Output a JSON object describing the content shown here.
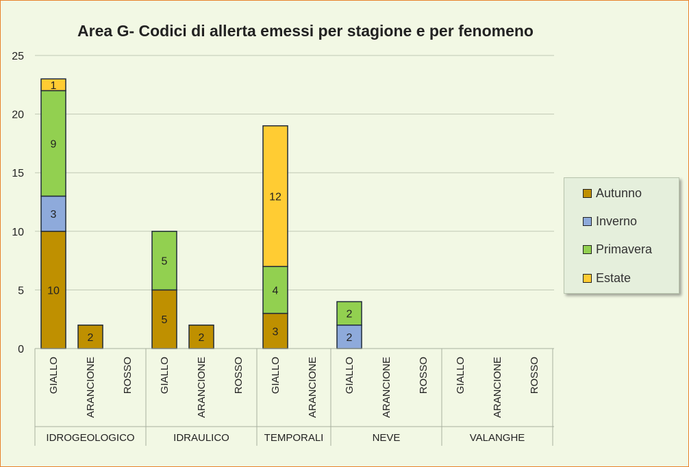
{
  "chart_data": {
    "type": "bar",
    "stacked": true,
    "title": "Area G- Codici di allerta emessi per stagione e per fenomeno",
    "ylim": [
      0,
      25
    ],
    "yticks": [
      0,
      5,
      10,
      15,
      20,
      25
    ],
    "grid": true,
    "legend_position": "right",
    "groups": [
      {
        "name": "IDROGEOLOGICO",
        "categories": [
          "GIALLO",
          "ARANCIONE",
          "ROSSO"
        ]
      },
      {
        "name": "IDRAULICO",
        "categories": [
          "GIALLO",
          "ARANCIONE",
          "ROSSO"
        ]
      },
      {
        "name": "TEMPORALI",
        "categories": [
          "GIALLO",
          "ARANCIONE"
        ]
      },
      {
        "name": "NEVE",
        "categories": [
          "GIALLO",
          "ARANCIONE",
          "ROSSO"
        ]
      },
      {
        "name": "VALANGHE",
        "categories": [
          "GIALLO",
          "ARANCIONE",
          "ROSSO"
        ]
      }
    ],
    "series": [
      {
        "name": "Autunno",
        "color": "#bf9000",
        "values": [
          10,
          2,
          0,
          5,
          2,
          0,
          3,
          0,
          0,
          0,
          0,
          0,
          0,
          0
        ]
      },
      {
        "name": "Inverno",
        "color": "#8eaadb",
        "values": [
          3,
          0,
          0,
          0,
          0,
          0,
          0,
          0,
          2,
          0,
          0,
          0,
          0,
          0
        ]
      },
      {
        "name": "Primavera",
        "color": "#92d050",
        "values": [
          9,
          0,
          0,
          5,
          0,
          0,
          4,
          0,
          2,
          0,
          0,
          0,
          0,
          0
        ]
      },
      {
        "name": "Estate",
        "color": "#ffcc33",
        "values": [
          1,
          0,
          0,
          0,
          0,
          0,
          12,
          0,
          0,
          0,
          0,
          0,
          0,
          0
        ]
      }
    ]
  }
}
